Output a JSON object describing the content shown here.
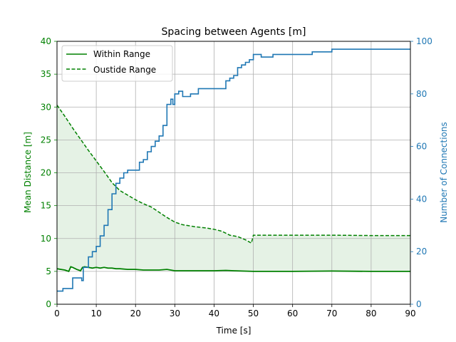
{
  "chart_data": {
    "type": "line",
    "title": "Spacing between Agents [m]",
    "xlabel": "Time [s]",
    "ylabel_left": "Mean Distance [m]",
    "ylabel_right": "Number of Connections",
    "xlim": [
      0,
      90
    ],
    "ylim_left": [
      0,
      40
    ],
    "ylim_right": [
      0,
      100
    ],
    "x_ticks": [
      0,
      10,
      20,
      30,
      40,
      50,
      60,
      70,
      80,
      90
    ],
    "y_ticks_left": [
      0,
      5,
      10,
      15,
      20,
      25,
      30,
      35,
      40
    ],
    "y_ticks_right": [
      0,
      20,
      40,
      60,
      80,
      100
    ],
    "grid": true,
    "legend_position": "top-left",
    "colors": {
      "within": "#008000",
      "outside": "#008000",
      "fill": "#e5f2e5",
      "connections": "#1f77b4",
      "left_axis": "#008000",
      "right_axis": "#1f77b4",
      "grid": "#b0b0b0"
    },
    "series": [
      {
        "name": "Within Range",
        "axis": "left",
        "style": "solid",
        "x": [
          0,
          1,
          2,
          3,
          3.5,
          4,
          5,
          6,
          6.5,
          7,
          8,
          9,
          10,
          11,
          12,
          13,
          14,
          15,
          16,
          18,
          20,
          22,
          24,
          26,
          28,
          30,
          32,
          35,
          40,
          43,
          45,
          50,
          60,
          70,
          80,
          90
        ],
        "y": [
          5.4,
          5.3,
          5.2,
          5.0,
          5.7,
          5.6,
          5.3,
          5.1,
          5.6,
          5.7,
          5.6,
          5.5,
          5.6,
          5.5,
          5.6,
          5.5,
          5.5,
          5.4,
          5.4,
          5.3,
          5.3,
          5.2,
          5.2,
          5.2,
          5.3,
          5.1,
          5.1,
          5.1,
          5.1,
          5.15,
          5.1,
          5.0,
          5.0,
          5.05,
          5.0,
          5.0
        ]
      },
      {
        "name": "Oustide Range",
        "axis": "left",
        "style": "dashed",
        "x": [
          0,
          2,
          4,
          6,
          8,
          10,
          12,
          14,
          16,
          18,
          20,
          22,
          24,
          26,
          28,
          30,
          32,
          35,
          38,
          40,
          42,
          44,
          46,
          48,
          49.5,
          50,
          60,
          70,
          80,
          90
        ],
        "y": [
          30.3,
          28.6,
          26.8,
          25.1,
          23.4,
          21.8,
          20.2,
          18.5,
          17.3,
          16.6,
          15.9,
          15.3,
          14.8,
          14.0,
          13.2,
          12.5,
          12.1,
          11.8,
          11.6,
          11.4,
          11.1,
          10.5,
          10.3,
          9.8,
          9.3,
          10.5,
          10.5,
          10.5,
          10.45,
          10.45
        ]
      },
      {
        "name": "Number of Connections",
        "axis": "right",
        "style": "solid",
        "x": [
          0,
          1,
          1.5,
          3,
          4,
          6,
          6.3,
          6.7,
          8,
          9,
          10,
          11,
          12,
          13,
          14,
          15,
          16,
          17,
          18,
          19,
          20,
          21,
          22,
          23,
          24,
          25,
          26,
          27,
          28,
          29,
          29.5,
          30,
          31,
          32,
          34,
          36,
          40,
          42,
          43,
          44,
          45,
          46,
          47,
          48,
          49,
          50,
          52,
          55,
          60,
          65,
          69,
          70,
          80,
          90
        ],
        "y": [
          5,
          5,
          6,
          6,
          10,
          10,
          9,
          14,
          18,
          20,
          22,
          26,
          30,
          36,
          42,
          46,
          48,
          50,
          51,
          51,
          51,
          54,
          55,
          58,
          60,
          62,
          64,
          68,
          76,
          78,
          76,
          80,
          81,
          79,
          80,
          82,
          82,
          82,
          85,
          86,
          87,
          90,
          91,
          92,
          93,
          95,
          94,
          95,
          95,
          96,
          96,
          97,
          97,
          97
        ]
      }
    ]
  }
}
